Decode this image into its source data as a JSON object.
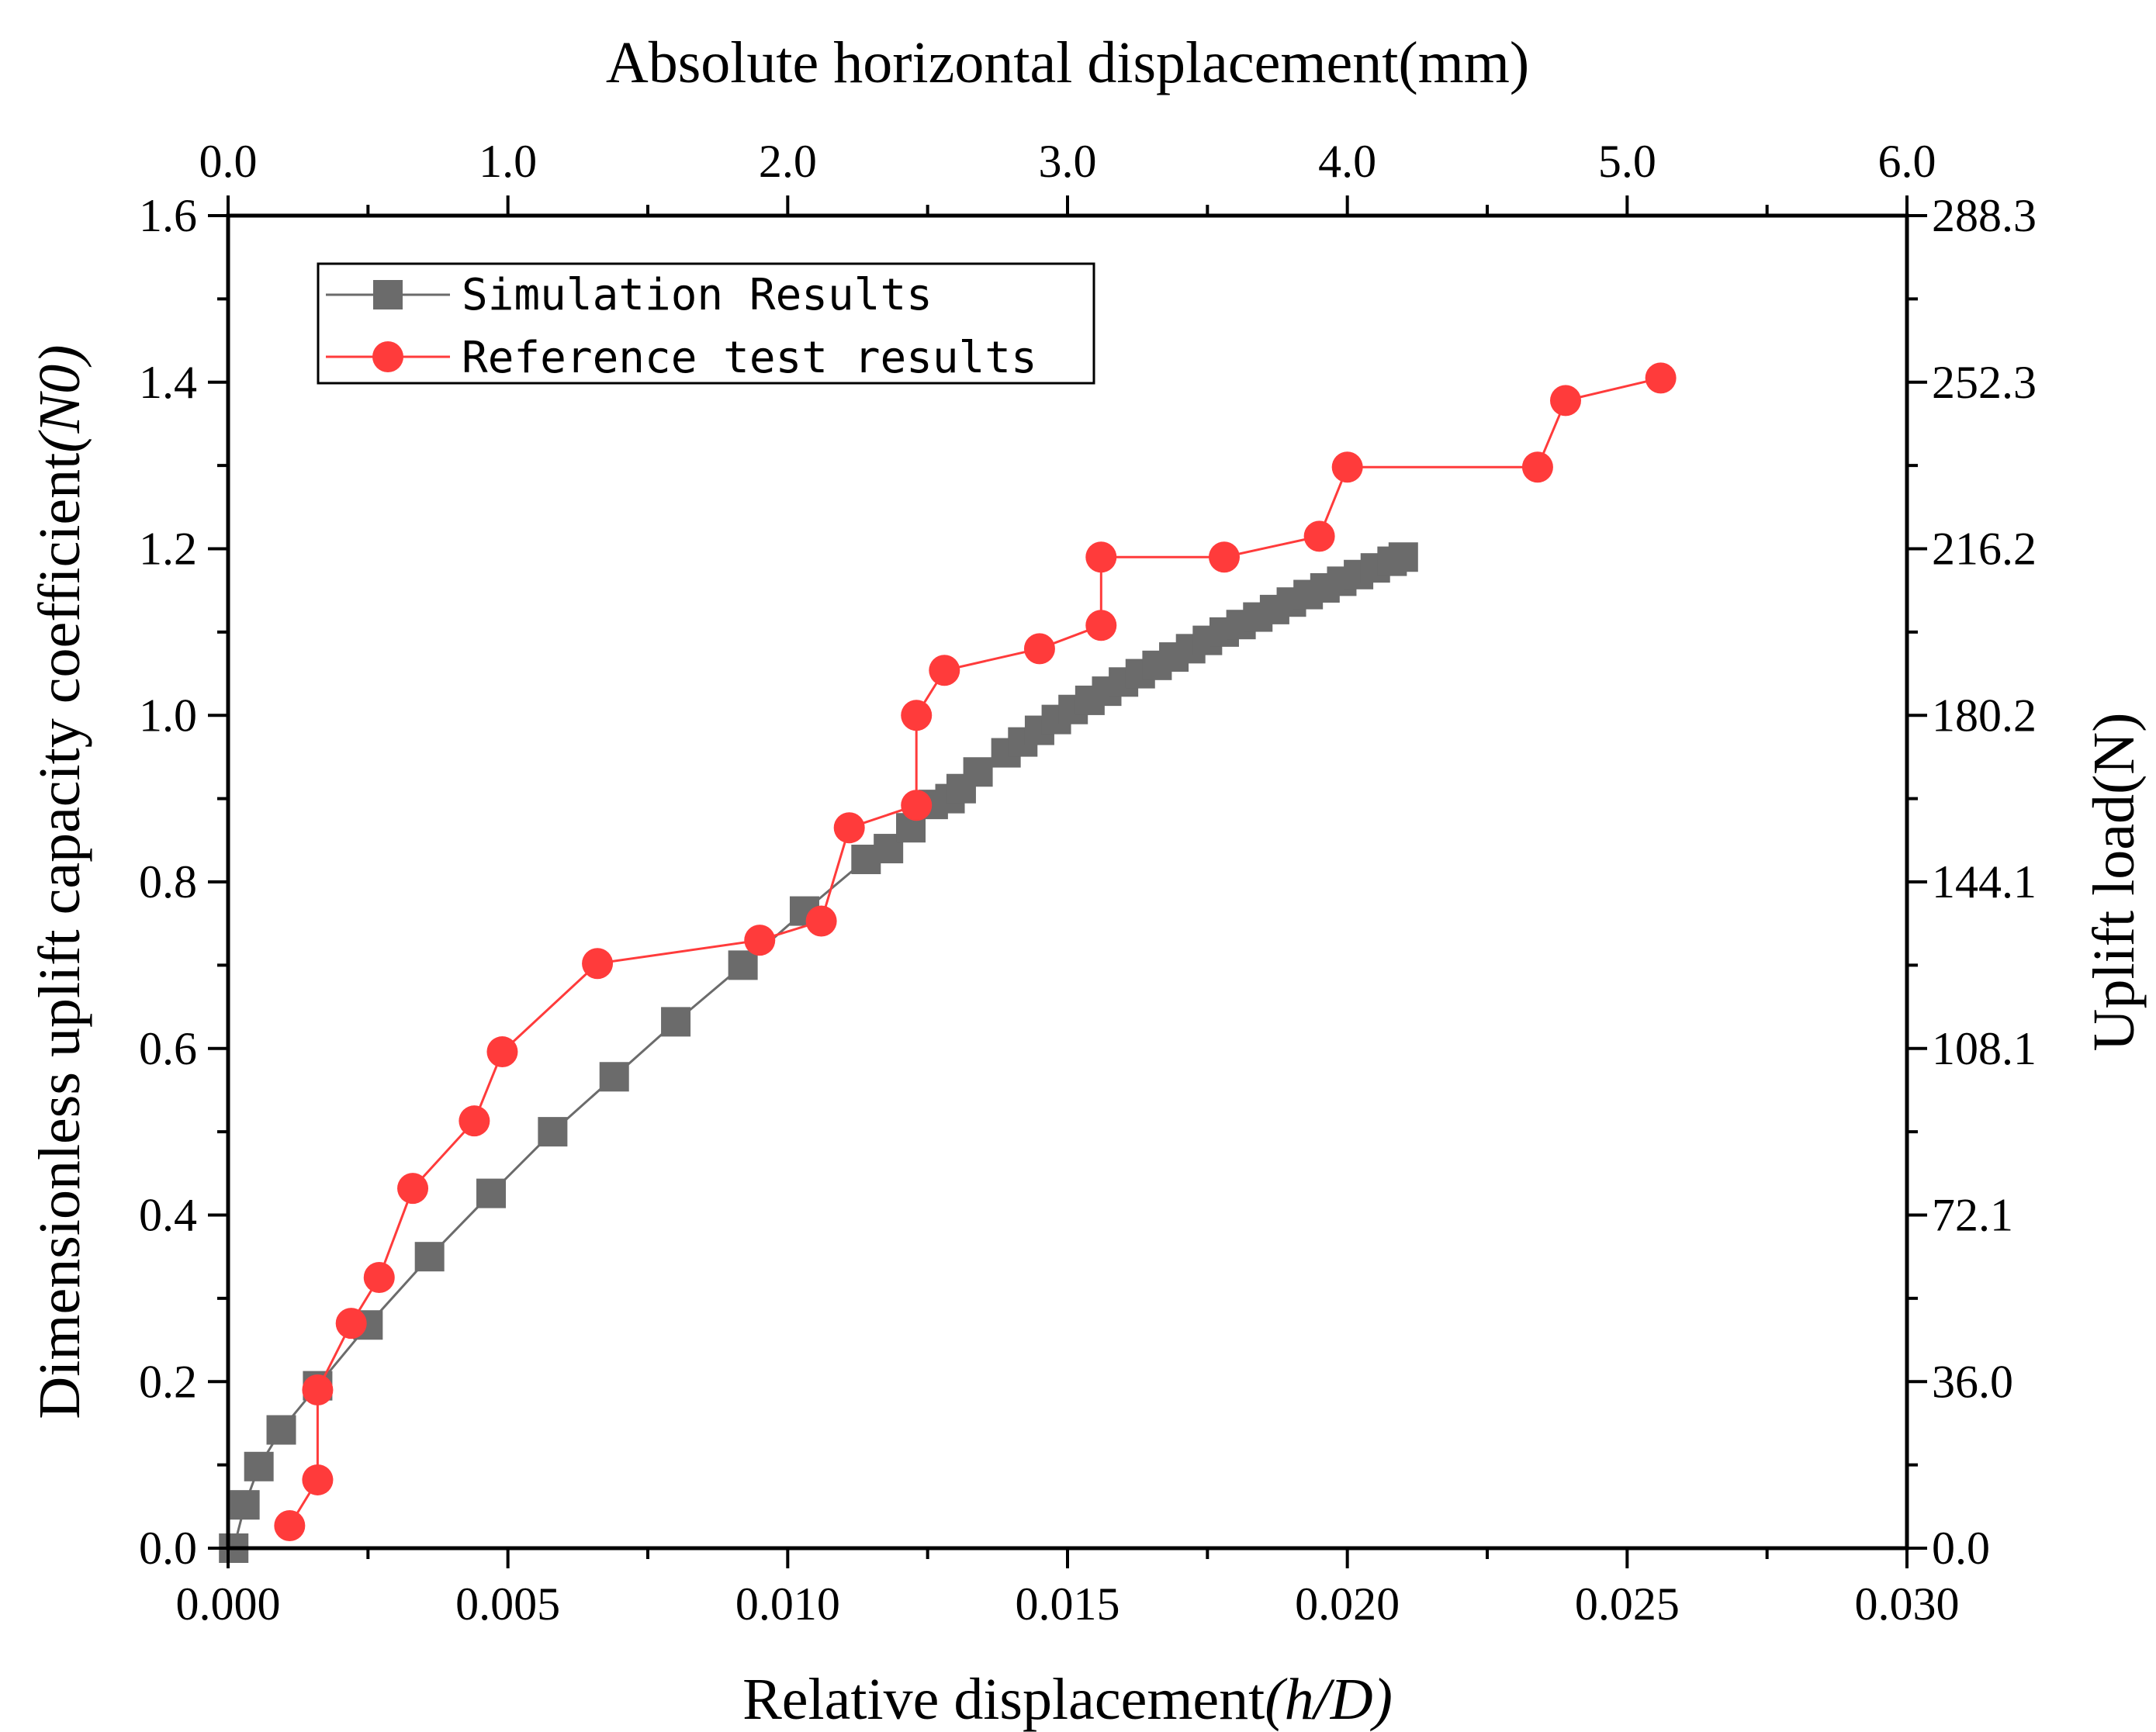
{
  "chart_data": {
    "type": "line",
    "title": "",
    "xlabel": "Relative displacement",
    "xlabel_math": "(h/D)",
    "ylabel": "Dimensionless uplift capacity coefficient",
    "ylabel_math": "(N0)",
    "x2label": "Absolute horizontal displacement(mm)",
    "y2label": "Uplift load(N)",
    "xlim": [
      0.0,
      0.03
    ],
    "ylim": [
      0.0,
      1.6
    ],
    "x_ticks": [
      "0.000",
      "0.005",
      "0.010",
      "0.015",
      "0.020",
      "0.025",
      "0.030"
    ],
    "y_ticks": [
      "0.0",
      "0.2",
      "0.4",
      "0.6",
      "0.8",
      "1.0",
      "1.2",
      "1.4",
      "1.6"
    ],
    "x2_ticks": [
      "0.0",
      "1.0",
      "2.0",
      "3.0",
      "4.0",
      "5.0",
      "6.0"
    ],
    "y2_ticks": [
      "0.0",
      "36.0",
      "72.1",
      "108.1",
      "144.1",
      "180.2",
      "216.2",
      "252.3",
      "288.3"
    ],
    "legend_position": "top-left",
    "series": [
      {
        "name": "Simulation Results",
        "color": "#6b6b6b",
        "marker": "square",
        "points": [
          [
            0.0001,
            0.0
          ],
          [
            0.0003,
            0.052
          ],
          [
            0.00055,
            0.098
          ],
          [
            0.00095,
            0.142
          ],
          [
            0.0016,
            0.195
          ],
          [
            0.0025,
            0.268
          ],
          [
            0.0036,
            0.35
          ],
          [
            0.0047,
            0.426
          ],
          [
            0.0058,
            0.5
          ],
          [
            0.0069,
            0.566
          ],
          [
            0.008,
            0.632
          ],
          [
            0.0092,
            0.7
          ],
          [
            0.0103,
            0.765
          ],
          [
            0.0114,
            0.827
          ],
          [
            0.0118,
            0.84
          ],
          [
            0.0122,
            0.865
          ],
          [
            0.0126,
            0.893
          ],
          [
            0.0129,
            0.9
          ],
          [
            0.0131,
            0.912
          ],
          [
            0.0134,
            0.932
          ],
          [
            0.0139,
            0.955
          ],
          [
            0.0142,
            0.968
          ],
          [
            0.0145,
            0.982
          ],
          [
            0.0148,
            0.995
          ],
          [
            0.0151,
            1.007
          ],
          [
            0.0154,
            1.018
          ],
          [
            0.0157,
            1.029
          ],
          [
            0.016,
            1.04
          ],
          [
            0.0163,
            1.05
          ],
          [
            0.0166,
            1.06
          ],
          [
            0.0169,
            1.07
          ],
          [
            0.0172,
            1.08
          ],
          [
            0.0175,
            1.09
          ],
          [
            0.0178,
            1.1
          ],
          [
            0.0181,
            1.109
          ],
          [
            0.0184,
            1.118
          ],
          [
            0.0187,
            1.127
          ],
          [
            0.019,
            1.136
          ],
          [
            0.0193,
            1.145
          ],
          [
            0.0196,
            1.153
          ],
          [
            0.0199,
            1.161
          ],
          [
            0.0202,
            1.169
          ],
          [
            0.0205,
            1.177
          ],
          [
            0.0208,
            1.185
          ],
          [
            0.021,
            1.19
          ]
        ]
      },
      {
        "name": "Reference test results",
        "color": "#ff3b3b",
        "marker": "circle",
        "points": [
          [
            0.0011,
            0.027
          ],
          [
            0.0016,
            0.082
          ],
          [
            0.0016,
            0.19
          ],
          [
            0.0022,
            0.27
          ],
          [
            0.0027,
            0.325
          ],
          [
            0.0033,
            0.432
          ],
          [
            0.0044,
            0.513
          ],
          [
            0.0049,
            0.596
          ],
          [
            0.0066,
            0.702
          ],
          [
            0.0095,
            0.73
          ],
          [
            0.0106,
            0.753
          ],
          [
            0.0111,
            0.865
          ],
          [
            0.0123,
            0.892
          ],
          [
            0.0123,
            1.0
          ],
          [
            0.0128,
            1.054
          ],
          [
            0.0145,
            1.08
          ],
          [
            0.0156,
            1.108
          ],
          [
            0.0156,
            1.19
          ],
          [
            0.0178,
            1.19
          ],
          [
            0.0195,
            1.215
          ],
          [
            0.02,
            1.298
          ],
          [
            0.0234,
            1.298
          ],
          [
            0.0239,
            1.378
          ],
          [
            0.0256,
            1.405
          ]
        ]
      }
    ]
  }
}
